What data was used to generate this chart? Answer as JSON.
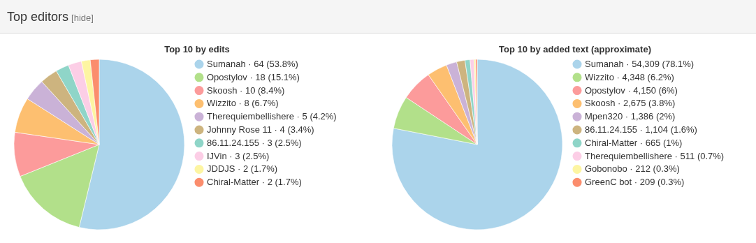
{
  "chart_data": [
    {
      "type": "pie",
      "title": "Top 10 by edits",
      "annotations": [
        "Top editors",
        "[hide]"
      ],
      "legend": "right",
      "categories": [
        "Sumanah · 64 (53.8%)",
        "Opostylov · 18 (15.1%)",
        "Skoosh · 10 (8.4%)",
        "Wizzito · 8 (6.7%)",
        "Therequiembellishere · 5 (4.2%)",
        "Johnny Rose 11 · 4 (3.4%)",
        "86.11.24.155 · 3 (2.5%)",
        "IJVin · 3 (2.5%)",
        "JDDJS · 2 (1.7%)",
        "Chiral-Matter · 2 (1.7%)"
      ],
      "values": [
        64,
        18,
        10,
        8,
        5,
        4,
        3,
        3,
        2,
        2
      ],
      "colors": [
        "#abd4eb",
        "#b2e08a",
        "#fc9b9b",
        "#fdbf70",
        "#cab2d7",
        "#cdb47f",
        "#8fd5c8",
        "#fcceE6",
        "#fdf5a2",
        "#fb8d6d"
      ]
    },
    {
      "type": "pie",
      "title": "Top 10 by added text (approximate)",
      "legend": "right",
      "categories": [
        "Sumanah · 54,309 (78.1%)",
        "Wizzito · 4,348 (6.2%)",
        "Opostylov · 4,150 (6%)",
        "Skoosh · 2,675 (3.8%)",
        "Mpen320 · 1,386 (2%)",
        "86.11.24.155 · 1,104 (1.6%)",
        "Chiral-Matter · 665 (1%)",
        "Therequiembellishere · 511 (0.7%)",
        "Gobonobo · 212 (0.3%)",
        "GreenC bot · 209 (0.3%)"
      ],
      "values": [
        54309,
        4348,
        4150,
        2675,
        1386,
        1104,
        665,
        511,
        212,
        209
      ],
      "colors": [
        "#abd4eb",
        "#b2e08a",
        "#fc9b9b",
        "#fdbf70",
        "#cab2d7",
        "#cdb47f",
        "#8fd5c8",
        "#fccee6",
        "#fdf5a2",
        "#fb8d6d"
      ]
    }
  ]
}
